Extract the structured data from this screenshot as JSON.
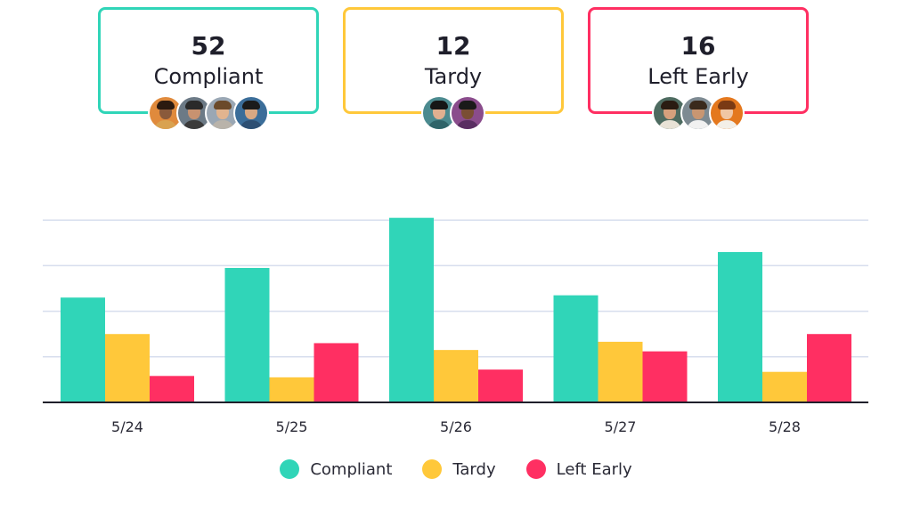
{
  "colors": {
    "compliant": "#30d5b8",
    "tardy": "#ffc83a",
    "left_early": "#ff2f62",
    "grid": "#d7deee",
    "axis": "#1f1f2b"
  },
  "cards": [
    {
      "count": "52",
      "label": "Compliant",
      "color": "#30d5b8",
      "avatars": [
        {
          "bg": "#e08a3c",
          "skin": "#8a5a3b",
          "hair": "#2b1a10",
          "shirt": "#d9a250"
        },
        {
          "bg": "#6c7a86",
          "skin": "#c89270",
          "hair": "#2a2a2a",
          "shirt": "#3b3b3b"
        },
        {
          "bg": "#9aa7b4",
          "skin": "#e2b48f",
          "hair": "#6b4a2a",
          "shirt": "#b9b3aa"
        },
        {
          "bg": "#3b6d99",
          "skin": "#d9a883",
          "hair": "#1b1b1b",
          "shirt": "#2d4f73"
        }
      ]
    },
    {
      "count": "12",
      "label": "Tardy",
      "color": "#ffc83a",
      "avatars": [
        {
          "bg": "#4b8a8f",
          "skin": "#e0b090",
          "hair": "#161616",
          "shirt": "#2f6469"
        },
        {
          "bg": "#8a4c8c",
          "skin": "#7a4e34",
          "hair": "#1a1a1a",
          "shirt": "#5a2e62"
        }
      ]
    },
    {
      "count": "16",
      "label": "Left Early",
      "color": "#ff2f62",
      "avatars": [
        {
          "bg": "#4d6b60",
          "skin": "#d4a07c",
          "hair": "#2a1c12",
          "shirt": "#e8e2d6"
        },
        {
          "bg": "#7d8a92",
          "skin": "#c89672",
          "hair": "#3a2a1c",
          "shirt": "#f1f1f1"
        },
        {
          "bg": "#e4781e",
          "skin": "#f0c6a4",
          "hair": "#7a3a14",
          "shirt": "#f3efe8"
        }
      ]
    }
  ],
  "chart_data": {
    "type": "bar",
    "categories": [
      "5/24",
      "5/25",
      "5/26",
      "5/27",
      "5/28"
    ],
    "series": [
      {
        "name": "Compliant",
        "color": "#30d5b8",
        "values": [
          2.3,
          2.95,
          4.05,
          2.35,
          3.3
        ]
      },
      {
        "name": "Tardy",
        "color": "#ffc83a",
        "values": [
          1.5,
          0.55,
          1.15,
          1.33,
          0.67
        ]
      },
      {
        "name": "Left Early",
        "color": "#ff2f62",
        "values": [
          0.58,
          1.3,
          0.72,
          1.12,
          1.5
        ]
      }
    ],
    "ylim": [
      0,
      4.2
    ],
    "grid": true,
    "legend": "bottom",
    "title": "",
    "xlabel": "",
    "ylabel": ""
  }
}
